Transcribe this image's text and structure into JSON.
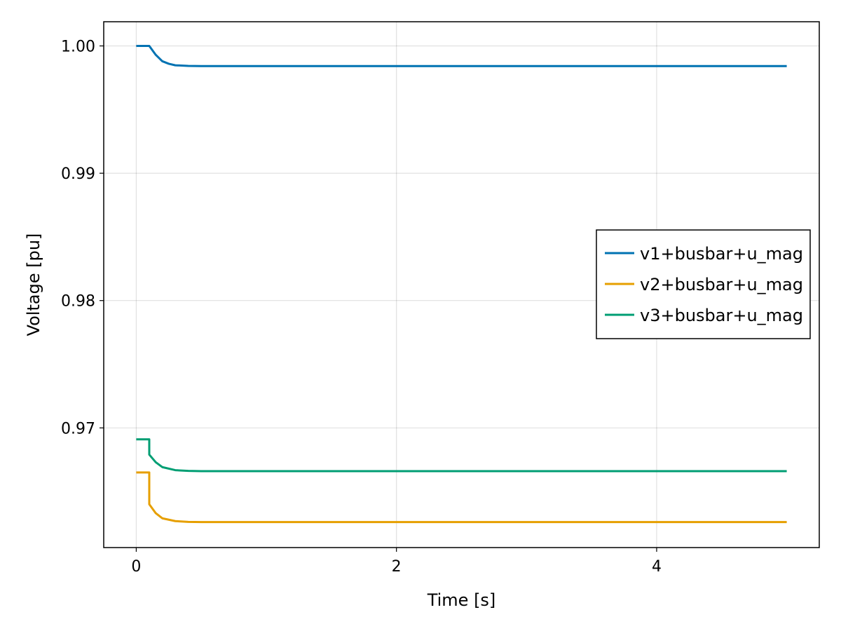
{
  "chart_data": {
    "type": "line",
    "title": "",
    "xlabel": "Time [s]",
    "ylabel": "Voltage [pu]",
    "xlim": [
      -0.25,
      5.25
    ],
    "ylim": [
      0.9606,
      1.0019
    ],
    "xticks": [
      0,
      2,
      4
    ],
    "xtick_labels": [
      "0",
      "2",
      "4"
    ],
    "yticks": [
      0.97,
      0.98,
      0.99,
      1.0
    ],
    "ytick_labels": [
      "0.97",
      "0.98",
      "0.99",
      "1.00"
    ],
    "grid": true,
    "legend_position": "right",
    "series": [
      {
        "name": "v1+busbar+u_mag",
        "color": "#0072B2",
        "x": [
          0,
          0.1,
          0.15,
          0.2,
          0.25,
          0.3,
          0.4,
          0.5,
          0.7,
          1,
          2,
          3,
          4,
          5
        ],
        "y": [
          1.0,
          1.0,
          0.9993,
          0.9988,
          0.9986,
          0.99848,
          0.99843,
          0.99842,
          0.99842,
          0.99842,
          0.99842,
          0.99842,
          0.99842,
          0.99842
        ]
      },
      {
        "name": "v2+busbar+u_mag",
        "color": "#E69F00",
        "x": [
          0,
          0.1,
          0.1001,
          0.15,
          0.2,
          0.3,
          0.4,
          0.5,
          0.7,
          1,
          2,
          3,
          4,
          5
        ],
        "y": [
          0.9665,
          0.9665,
          0.964,
          0.9633,
          0.9629,
          0.96268,
          0.96262,
          0.9626,
          0.9626,
          0.9626,
          0.9626,
          0.9626,
          0.9626,
          0.9626
        ]
      },
      {
        "name": "v3+busbar+u_mag",
        "color": "#009E73",
        "x": [
          0,
          0.1,
          0.1001,
          0.15,
          0.2,
          0.3,
          0.4,
          0.5,
          0.7,
          1,
          2,
          3,
          4,
          5
        ],
        "y": [
          0.9691,
          0.9691,
          0.9679,
          0.9673,
          0.96692,
          0.96668,
          0.96662,
          0.9666,
          0.9666,
          0.9666,
          0.9666,
          0.9666,
          0.9666,
          0.9666
        ]
      }
    ]
  }
}
